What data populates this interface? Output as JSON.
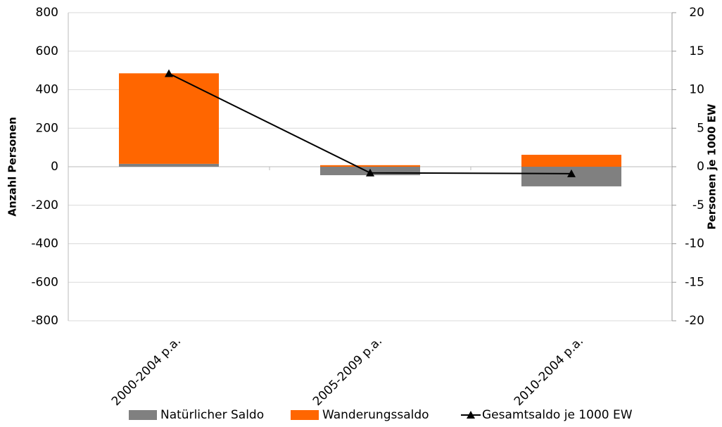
{
  "chart_data": {
    "type": "bar",
    "categories": [
      "2000-2004 p.a.",
      "2005-2009 p.a.",
      "2010-2004 p.a."
    ],
    "series": [
      {
        "name": "Natürlicher Saldo",
        "color": "#808080",
        "values": [
          15,
          -44,
          -102
        ]
      },
      {
        "name": "Wanderungssaldo",
        "color": "#ff6600",
        "values": [
          470,
          8,
          62
        ]
      },
      {
        "name": "Gesamtsaldo je 1000 EW",
        "color": "#000000",
        "type": "line",
        "axis": "y2",
        "values": [
          12.1,
          -0.8,
          -0.9
        ]
      }
    ],
    "stacked": true,
    "y_label": "Anzahl Personen",
    "y2_label": "Personen je 1000 EW",
    "ylim": [
      -800,
      800
    ],
    "yticks": [
      -800,
      -600,
      -400,
      -200,
      0,
      200,
      400,
      600,
      800
    ],
    "y2lim": [
      -20,
      20
    ],
    "y2ticks": [
      -20,
      -15,
      -10,
      -5,
      0,
      5,
      10,
      15,
      20
    ],
    "grid": true,
    "legend": "bottom"
  }
}
